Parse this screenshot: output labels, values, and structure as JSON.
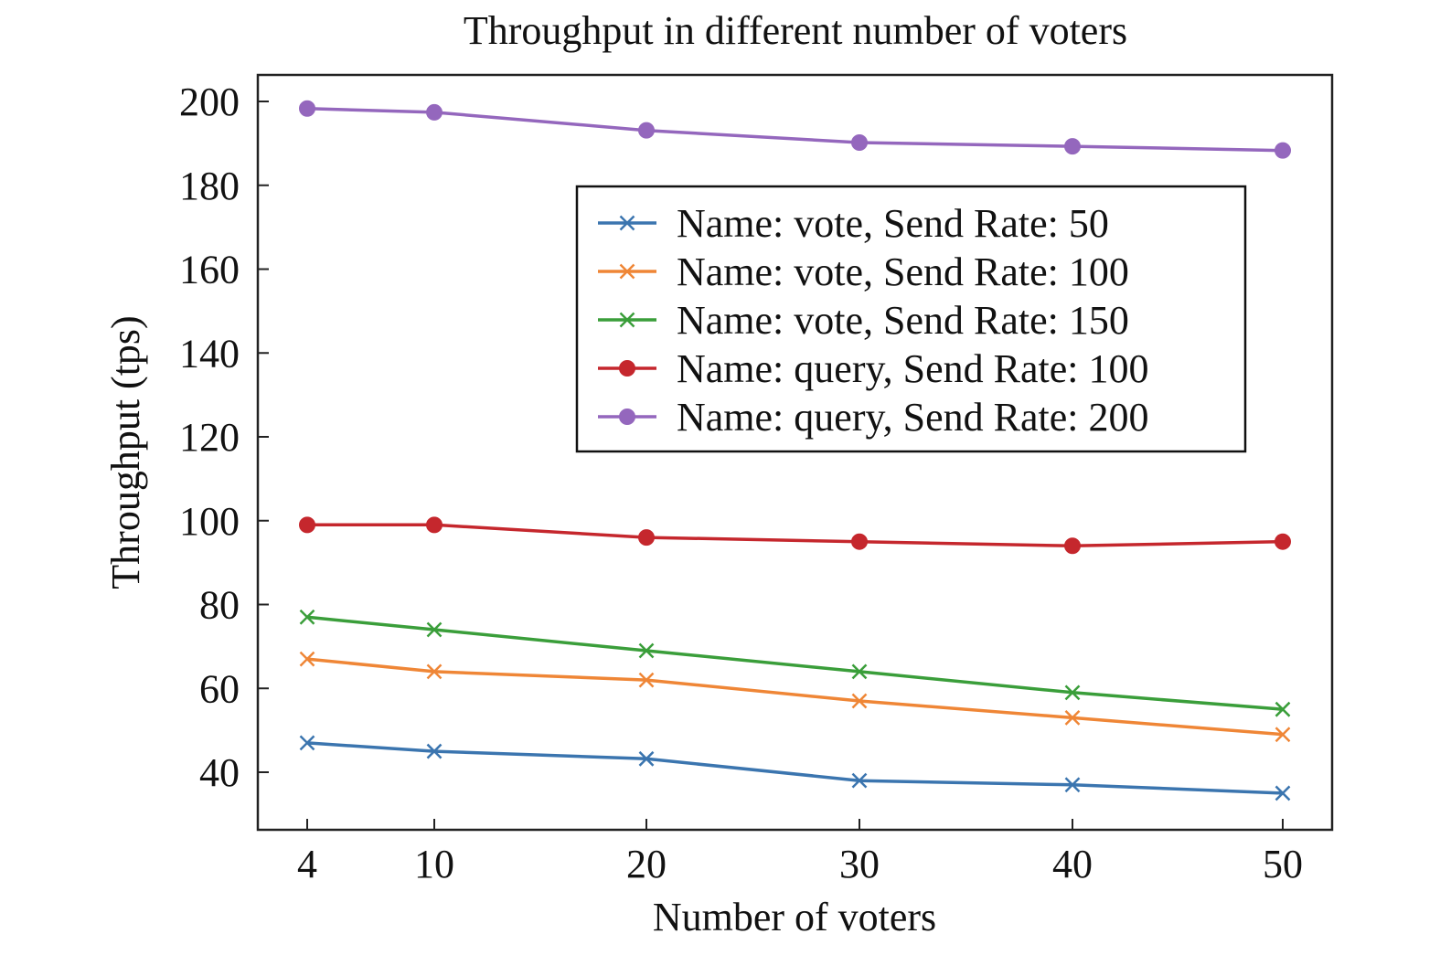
{
  "chart_data": {
    "type": "line",
    "title": "Throughput in different number of voters",
    "xlabel": "Number of voters",
    "ylabel": "Throughput (tps)",
    "x": [
      4,
      10,
      20,
      30,
      40,
      50
    ],
    "x_ticks": [
      "4",
      "10",
      "20",
      "30",
      "40",
      "50"
    ],
    "y_ticks": [
      40,
      60,
      80,
      100,
      120,
      140,
      160,
      180,
      200
    ],
    "ylim": [
      31,
      207
    ],
    "grid": false,
    "legend_position": "upper-right",
    "series": [
      {
        "name": "Name: vote, Send Rate: 50",
        "marker": "x",
        "color": "#3b75af",
        "values": [
          47,
          45,
          43.2,
          38,
          37,
          35
        ]
      },
      {
        "name": "Name: vote, Send Rate: 100",
        "marker": "x",
        "color": "#ef8636",
        "values": [
          67,
          64,
          62,
          57,
          53,
          49
        ]
      },
      {
        "name": "Name: vote, Send Rate: 150",
        "marker": "x",
        "color": "#3a9e3a",
        "values": [
          77,
          74,
          69,
          64,
          59,
          55
        ]
      },
      {
        "name": "Name: query, Send Rate: 100",
        "marker": "o",
        "color": "#c5272d",
        "values": [
          99,
          99,
          96,
          95,
          94,
          95
        ]
      },
      {
        "name": "Name: query, Send Rate: 200",
        "marker": "o",
        "color": "#9467bd",
        "values": [
          198.3,
          197.4,
          193.1,
          190.2,
          189.3,
          188.3
        ]
      }
    ]
  }
}
